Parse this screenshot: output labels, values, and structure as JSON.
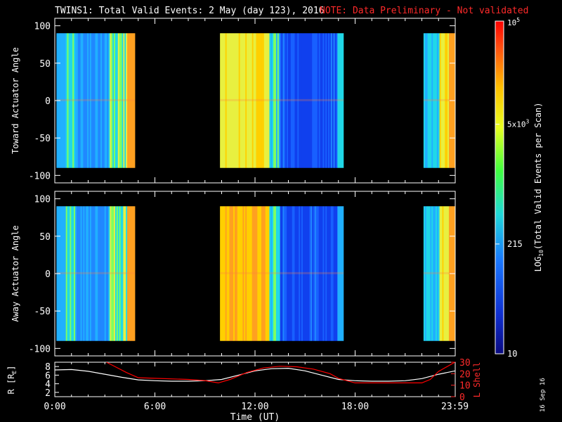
{
  "title": "TWINS1: Total Valid Events:  2 May (day 123), 2016",
  "note": "NOTE: Data Preliminary - Not validated",
  "date_stamp": "16 Sep 16",
  "chart_data": [
    {
      "type": "heatmap",
      "name": "toward",
      "ylabel": "Toward Actuator Angle",
      "ylim": [
        -110,
        110
      ],
      "y_data_range": [
        -90,
        90
      ],
      "yticks": [
        "-100",
        "-50",
        "0",
        "50",
        "100"
      ],
      "ytick_values": [
        -100,
        -50,
        0,
        50,
        100
      ],
      "xlim_hours": [
        0,
        24
      ],
      "data_blocks_hours": [
        [
          0.1,
          4.8
        ],
        [
          9.9,
          17.3
        ],
        [
          22.1,
          24
        ]
      ],
      "note": "log10 event counts; colours vary mainly with time"
    },
    {
      "type": "heatmap",
      "name": "away",
      "ylabel": "Away Actuator Angle",
      "ylim": [
        -110,
        110
      ],
      "y_data_range": [
        -90,
        90
      ],
      "yticks": [
        "-100",
        "-50",
        "0",
        "50",
        "100"
      ],
      "ytick_values": [
        -100,
        -50,
        0,
        50,
        100
      ],
      "xlim_hours": [
        0,
        24
      ],
      "data_blocks_hours": [
        [
          0.1,
          4.8
        ],
        [
          9.9,
          17.3
        ],
        [
          22.1,
          24
        ]
      ]
    },
    {
      "type": "line",
      "name": "orbit",
      "ylabel_left": "R [R",
      "ylabel_left_sub": "E",
      "ylabel_left_end": "]",
      "ylabel_right": "L Shell",
      "ylim_left": [
        1,
        9
      ],
      "yticks_left": [
        "2",
        "4",
        "6",
        "8"
      ],
      "ytick_left_values": [
        2,
        4,
        6,
        8
      ],
      "ylim_right": [
        0,
        30
      ],
      "yticks_right": [
        "0",
        "10",
        "20",
        "30"
      ],
      "ytick_right_values": [
        0,
        10,
        20,
        30
      ],
      "xlabel": "Time (UT)",
      "xticks": [
        "0:00",
        "6:00",
        "12:00",
        "18:00",
        "23:59"
      ],
      "xtick_values": [
        0,
        6,
        12,
        18,
        23.98
      ],
      "series": [
        {
          "name": "R",
          "color": "#ffffff",
          "x": [
            0,
            1,
            2,
            3,
            4,
            5,
            6,
            7,
            8,
            9,
            10,
            11,
            12,
            13,
            14,
            15,
            16,
            17,
            18,
            19,
            20,
            21,
            22,
            23,
            24
          ],
          "y": [
            7.2,
            7.3,
            6.9,
            6.2,
            5.5,
            4.9,
            4.7,
            4.6,
            4.6,
            4.7,
            5.0,
            6.0,
            7.0,
            7.5,
            7.6,
            7.0,
            6.0,
            5.0,
            4.7,
            4.6,
            4.6,
            4.7,
            5.2,
            6.2,
            7.0
          ]
        },
        {
          "name": "L Shell",
          "color": "#ff0000",
          "x": [
            3.1,
            3.5,
            4.3,
            5.0,
            6.0,
            8.0,
            9.0,
            9.8,
            10.5,
            11.5,
            12.5,
            13.5,
            14.5,
            15.5,
            16.5,
            17.0,
            18.0,
            20.0,
            22.0,
            22.5,
            23.0,
            23.98
          ],
          "y": [
            30,
            27,
            21,
            16.5,
            16,
            15,
            14,
            12,
            15,
            21,
            25,
            26.5,
            26,
            24,
            20,
            16,
            12,
            12,
            12,
            15,
            22,
            30
          ]
        }
      ]
    }
  ],
  "colorbar": {
    "label_main": "LOG",
    "label_sub": "10",
    "label_rest": "(Total Valid Events per Scan)",
    "ticks": [
      {
        "base": "10",
        "exp": "5"
      },
      {
        "base": "5x10",
        "exp": "3"
      },
      {
        "base": "215",
        "exp": ""
      },
      {
        "base": "10",
        "exp": ""
      }
    ]
  }
}
